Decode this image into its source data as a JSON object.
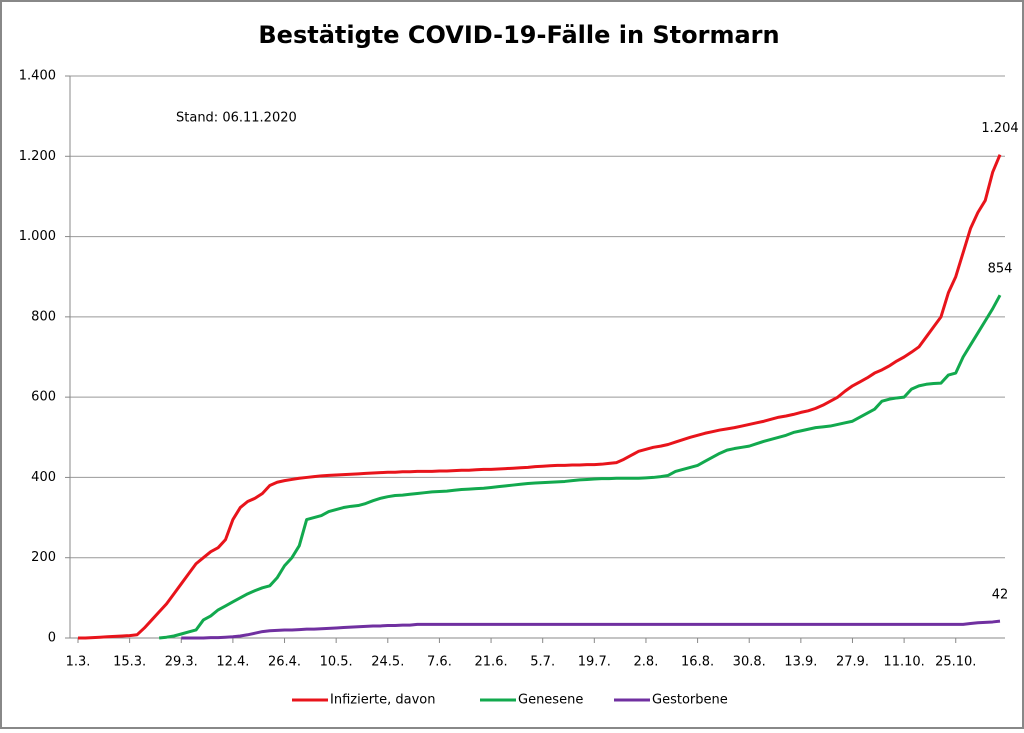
{
  "chart_data": {
    "type": "line",
    "title": "Bestätigte COVID-19-Fälle in Stormarn",
    "annotation": "Stand: 06.11.2020",
    "categories": [
      "1.3.",
      null,
      null,
      null,
      null,
      null,
      null,
      "15.3.",
      null,
      null,
      null,
      null,
      null,
      null,
      "29.3.",
      null,
      null,
      null,
      null,
      null,
      null,
      "12.4.",
      null,
      null,
      null,
      null,
      null,
      null,
      "26.4.",
      null,
      null,
      null,
      null,
      null,
      null,
      "10.5.",
      null,
      null,
      null,
      null,
      null,
      null,
      "24.5.",
      null,
      null,
      null,
      null,
      null,
      null,
      "7.6.",
      null,
      null,
      null,
      null,
      null,
      null,
      "21.6.",
      null,
      null,
      null,
      null,
      null,
      null,
      "5.7.",
      null,
      null,
      null,
      null,
      null,
      null,
      "19.7.",
      null,
      null,
      null,
      null,
      null,
      null,
      "2.8.",
      null,
      null,
      null,
      null,
      null,
      null,
      "16.8.",
      null,
      null,
      null,
      null,
      null,
      null,
      "30.8.",
      null,
      null,
      null,
      null,
      null,
      null,
      "13.9.",
      null,
      null,
      null,
      null,
      null,
      null,
      "27.9.",
      null,
      null,
      null,
      null,
      null,
      null,
      "11.10.",
      null,
      null,
      null,
      null,
      null,
      null,
      "25.10.",
      null,
      null,
      null,
      null,
      null,
      null
    ],
    "series": [
      {
        "name": "Infizierte, davon",
        "color": "#e8141b",
        "value_labels": {
          "125": "1.204"
        },
        "values": [
          0,
          0,
          1,
          2,
          3,
          4,
          5,
          6,
          8,
          25,
          45,
          65,
          85,
          110,
          135,
          160,
          185,
          200,
          215,
          225,
          245,
          295,
          325,
          340,
          348,
          360,
          380,
          388,
          392,
          395,
          398,
          400,
          402,
          404,
          405,
          406,
          407,
          408,
          409,
          410,
          411,
          412,
          413,
          413,
          414,
          414,
          415,
          415,
          415,
          416,
          416,
          417,
          418,
          418,
          419,
          420,
          420,
          421,
          422,
          423,
          424,
          425,
          427,
          428,
          429,
          430,
          430,
          431,
          431,
          432,
          432,
          433,
          435,
          437,
          445,
          455,
          465,
          470,
          475,
          478,
          482,
          488,
          494,
          500,
          505,
          510,
          514,
          518,
          521,
          524,
          528,
          532,
          536,
          540,
          545,
          550,
          553,
          557,
          562,
          566,
          572,
          580,
          590,
          600,
          615,
          628,
          638,
          648,
          660,
          668,
          678,
          690,
          700,
          712,
          725,
          750,
          775,
          800,
          860,
          900,
          960,
          1020,
          1060,
          1090,
          1160,
          1204
        ]
      },
      {
        "name": "Genesene",
        "color": "#12a94e",
        "values": [
          null,
          null,
          null,
          null,
          null,
          null,
          null,
          null,
          null,
          null,
          null,
          0,
          2,
          5,
          10,
          15,
          20,
          45,
          55,
          70,
          80,
          90,
          100,
          110,
          118,
          125,
          130,
          150,
          180,
          200,
          230,
          295,
          300,
          305,
          315,
          320,
          325,
          328,
          330,
          335,
          342,
          348,
          352,
          355,
          356,
          358,
          360,
          362,
          364,
          365,
          366,
          368,
          370,
          371,
          372,
          373,
          375,
          377,
          379,
          381,
          383,
          385,
          386,
          387,
          388,
          389,
          390,
          392,
          394,
          395,
          396,
          397,
          397,
          398,
          398,
          398,
          398,
          399,
          400,
          402,
          405,
          415,
          420,
          425,
          430,
          440,
          450,
          460,
          468,
          472,
          475,
          478,
          484,
          490,
          495,
          500,
          505,
          512,
          516,
          520,
          524,
          526,
          528,
          532,
          536,
          540,
          550,
          560,
          570,
          590,
          595,
          598,
          600,
          620,
          628,
          632,
          634,
          635,
          655,
          660,
          700,
          730,
          760,
          790,
          820,
          854
        ]
      },
      {
        "name": "Gestorbene",
        "color": "#7030a0",
        "values": [
          null,
          null,
          null,
          null,
          null,
          null,
          null,
          null,
          null,
          null,
          null,
          null,
          null,
          null,
          0,
          0,
          0,
          0,
          1,
          1,
          2,
          3,
          5,
          8,
          12,
          16,
          18,
          19,
          20,
          20,
          21,
          22,
          22,
          23,
          24,
          25,
          26,
          27,
          28,
          29,
          30,
          30,
          31,
          31,
          32,
          32,
          34,
          34,
          34,
          34,
          34,
          34,
          34,
          34,
          34,
          34,
          34,
          34,
          34,
          34,
          34,
          34,
          34,
          34,
          34,
          34,
          34,
          34,
          34,
          34,
          34,
          34,
          34,
          34,
          34,
          34,
          34,
          34,
          34,
          34,
          34,
          34,
          34,
          34,
          34,
          34,
          34,
          34,
          34,
          34,
          34,
          34,
          34,
          34,
          34,
          34,
          34,
          34,
          34,
          34,
          34,
          34,
          34,
          34,
          34,
          34,
          34,
          34,
          34,
          34,
          34,
          34,
          34,
          34,
          34,
          34,
          34,
          34,
          34,
          34,
          34,
          36,
          38,
          39,
          40,
          42
        ]
      }
    ],
    "ylim": [
      0,
      1400
    ],
    "yticks": [
      0,
      200,
      400,
      600,
      800,
      {
        "value": 1000,
        "label": "1.000"
      },
      {
        "value": 1200,
        "label": "1.200"
      },
      {
        "value": 1400,
        "label": "1.400"
      }
    ],
    "grid": true,
    "legend": "bottom"
  }
}
